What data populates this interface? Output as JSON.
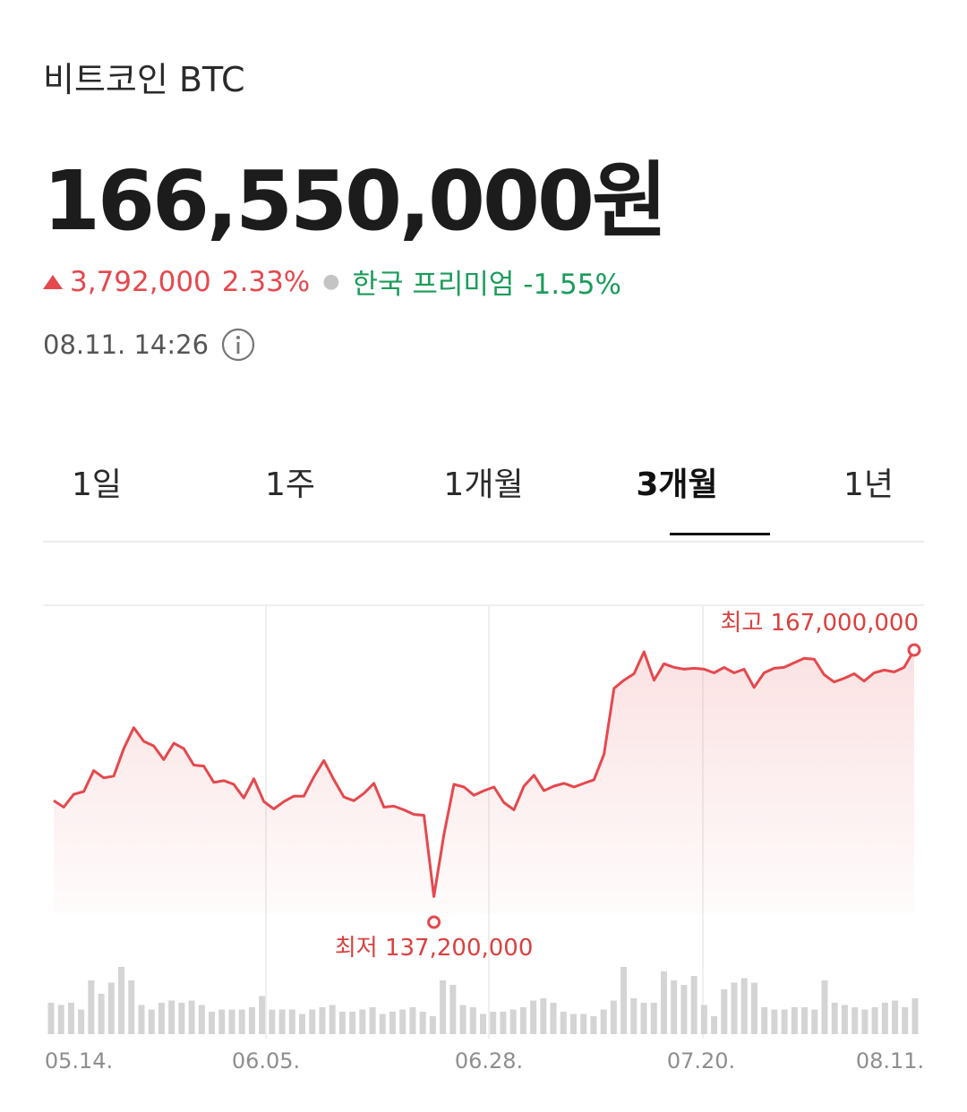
{
  "header": {
    "coin_name": "비트코인 BTC",
    "price": "166,550,000원",
    "change_value": "3,792,000",
    "change_percent": "2.33%",
    "premium": "한국 프리미엄 -1.55%",
    "timestamp": "08.11. 14:26",
    "change_icon": "triangle-up-icon",
    "info_icon": "info-icon"
  },
  "tabs": [
    {
      "label": "1일",
      "active": false
    },
    {
      "label": "1주",
      "active": false
    },
    {
      "label": "1개월",
      "active": false
    },
    {
      "label": "3개월",
      "active": true
    },
    {
      "label": "1년",
      "active": false
    }
  ],
  "colors": {
    "up": "#e5484d",
    "premium": "#1a9c5a",
    "line": "#e5484d",
    "volume": "#d4d4d4"
  },
  "chart_data": {
    "type": "line",
    "x_labels": [
      "05.14.",
      "06.05.",
      "06.28.",
      "07.20.",
      "08.11."
    ],
    "high_label": "최고 167,000,000",
    "low_label": "최저 137,200,000",
    "ylim": [
      137200000,
      167000000
    ],
    "series": [
      {
        "values": [
          150500000,
          149800000,
          151200000,
          151500000,
          153800000,
          153000000,
          153200000,
          156200000,
          158500000,
          157000000,
          156500000,
          155000000,
          156800000,
          156200000,
          154400000,
          154300000,
          152500000,
          152700000,
          152300000,
          150800000,
          152900000,
          150400000,
          149600000,
          150400000,
          151000000,
          151000000,
          153100000,
          154900000,
          152800000,
          150900000,
          150500000,
          151300000,
          152400000,
          149800000,
          149900000,
          149500000,
          149000000,
          148900000,
          140000000,
          146800000,
          152300000,
          152000000,
          151100000,
          151600000,
          152000000,
          150300000,
          149500000,
          152100000,
          153300000,
          151600000,
          152100000,
          152400000,
          152000000,
          152400000,
          152800000,
          155600000,
          162800000,
          163700000,
          164400000,
          166800000,
          163700000,
          165500000,
          165100000,
          164900000,
          165000000,
          164900000,
          164500000,
          165100000,
          164500000,
          164900000,
          162900000,
          164500000,
          165000000,
          165100000,
          165600000,
          166100000,
          166000000,
          164300000,
          163500000,
          163900000,
          164400000,
          163600000,
          164500000,
          164800000,
          164600000,
          165100000,
          167000000
        ]
      }
    ],
    "volume": [
      14,
      13,
      14,
      11,
      24,
      18,
      23,
      30,
      24,
      13,
      11,
      14,
      15,
      14,
      15,
      13,
      10,
      11,
      11,
      11,
      12,
      17,
      11,
      11,
      11,
      9,
      11,
      12,
      13,
      10,
      10,
      11,
      12,
      9,
      10,
      11,
      12,
      10,
      8,
      24,
      22,
      13,
      12,
      9,
      10,
      10,
      11,
      12,
      15,
      16,
      14,
      10,
      9,
      9,
      8,
      11,
      15,
      30,
      16,
      14,
      14,
      28,
      24,
      22,
      26,
      13,
      8,
      20,
      23,
      25,
      23,
      12,
      11,
      11,
      12,
      12,
      11,
      24,
      14,
      13,
      12,
      11,
      12,
      14,
      15,
      12,
      16
    ]
  }
}
